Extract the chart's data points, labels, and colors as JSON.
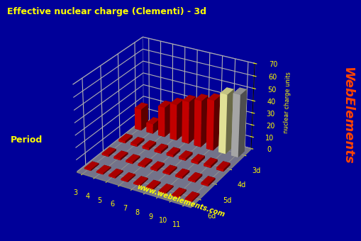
{
  "title": "Effective nuclear charge (Clementi) - 3d",
  "title_color": "#ffff00",
  "background_color": "#000099",
  "ylabel": "nuclear charge units",
  "period_label": "Period",
  "watermark": "www.webelements.com",
  "webelements_text": "WebElements",
  "groups_labels": [
    "3",
    "4",
    "5",
    "6",
    "7",
    "8",
    "9",
    "10",
    "11"
  ],
  "periods_labels": [
    "3d",
    "4d",
    "5d",
    "6d"
  ],
  "zlim": [
    0,
    70
  ],
  "zticks": [
    0,
    10,
    20,
    30,
    40,
    50,
    60,
    70
  ],
  "vals_3d": [
    18.0,
    8.0,
    25.0,
    30.0,
    35.0,
    38.5,
    41.5,
    49.0,
    51.5
  ],
  "vals_4d": [
    1.8,
    1.8,
    1.8,
    1.8,
    1.8,
    1.8,
    1.8,
    1.8,
    1.8
  ],
  "vals_5d": [
    1.4,
    1.4,
    1.4,
    1.4,
    1.4,
    1.4,
    1.4,
    1.4,
    1.4
  ],
  "vals_6d": [
    1.0,
    1.0,
    1.0,
    1.0,
    1.0,
    1.0,
    1.0,
    1.0,
    1.0
  ],
  "bar_colors_3d": [
    "#dd0000",
    "#dd0000",
    "#dd0000",
    "#dd0000",
    "#dd0000",
    "#dd0000",
    "#dd0000",
    "#ffffaa",
    "#bbbbbb"
  ],
  "bar_color_other": "#dd0000",
  "floor_color": "#888888",
  "pane_color": "#000099",
  "grid_color": "#8888bb",
  "axis_label_color": "#ffff00",
  "tick_color": "#ffff00",
  "webelements_color": "#ff4400",
  "watermark_color": "#ffff00",
  "bar_width": 0.55,
  "bar_depth": 0.45,
  "elev": 28,
  "azim": -60
}
